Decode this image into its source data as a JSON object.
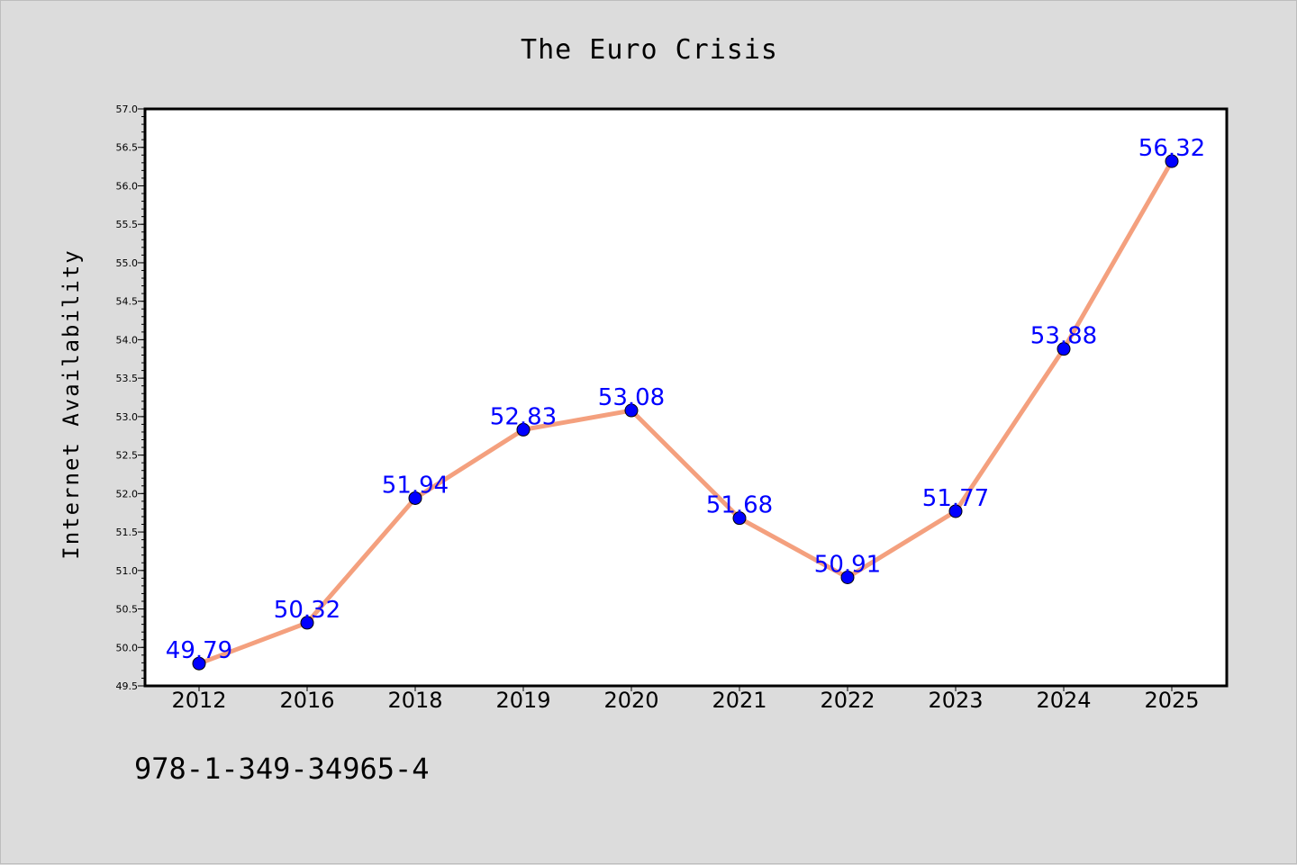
{
  "chart_data": {
    "type": "line",
    "title": "The Euro Crisis",
    "xlabel": "",
    "ylabel": "Internet Availability",
    "categories": [
      "2012",
      "2016",
      "2018",
      "2019",
      "2020",
      "2021",
      "2022",
      "2023",
      "2024",
      "2025"
    ],
    "series": [
      {
        "values": [
          49.79,
          50.32,
          51.94,
          52.83,
          53.08,
          51.68,
          50.91,
          51.77,
          53.88,
          56.32
        ]
      }
    ],
    "data_labels": [
      "49.79",
      "50.32",
      "51.94",
      "52.83",
      "53.08",
      "51.68",
      "50.91",
      "51.77",
      "53.88",
      "56.32"
    ],
    "ylim": [
      49.5,
      57.0
    ],
    "yticks": [
      "49.5",
      "50.0",
      "50.5",
      "51.0",
      "51.5",
      "52.0",
      "52.5",
      "53.0",
      "53.5",
      "54.0",
      "54.5",
      "55.0",
      "55.5",
      "56.0",
      "56.5",
      "57.0"
    ],
    "grid": false,
    "colors": {
      "line": "#f4a07e",
      "marker": "#0000ff",
      "label": "#0000ff",
      "background": "#dcdcdc",
      "plot_background": "#ffffff"
    }
  },
  "footer": {
    "isbn": "978-1-349-34965-4"
  }
}
